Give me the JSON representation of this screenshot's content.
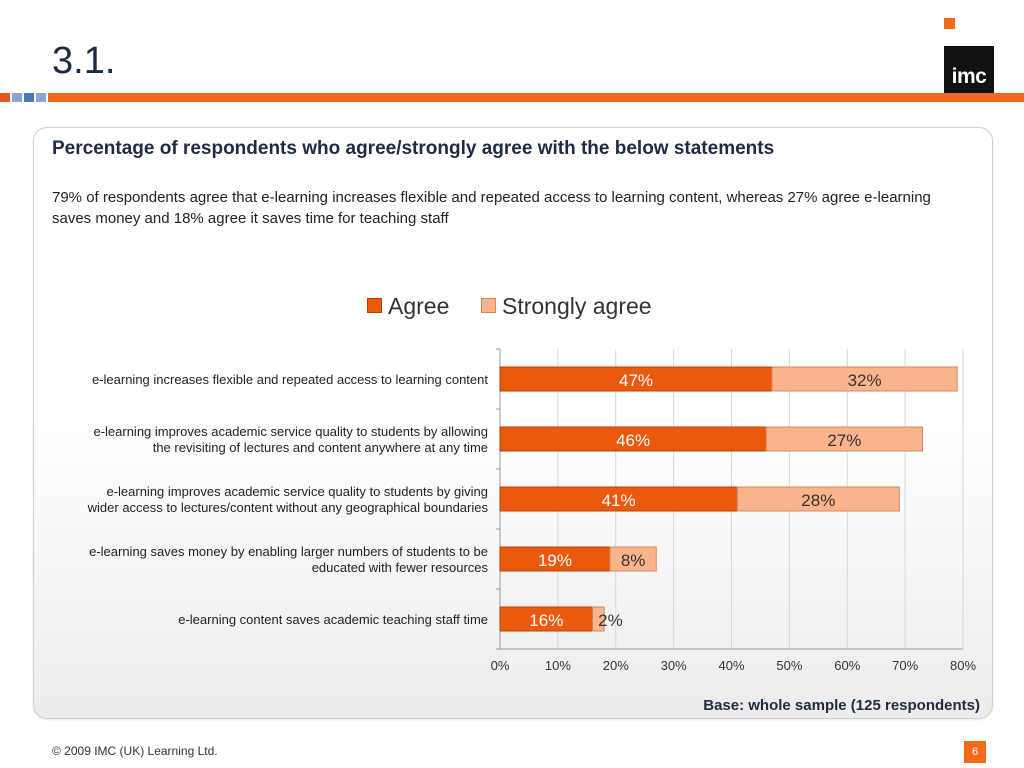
{
  "slide": {
    "title": "3.1.",
    "logo_text": "imc",
    "footer": "© 2009 IMC (UK) Learning Ltd.",
    "page_number": "6"
  },
  "colors": {
    "accent": "#f26a1b",
    "agree": "#ea5a0e",
    "strongly_agree": "#f9b48c",
    "stripe_blocks": [
      "#e8531f",
      "#8aa7d4",
      "#4d79b8",
      "#8aa7d4"
    ]
  },
  "panel": {
    "title": "Percentage of respondents who agree/strongly agree with the below statements",
    "subtitle": "79% of respondents agree that e-learning increases flexible and repeated access to learning content, whereas 27% agree e-learning saves money and 18% agree it saves time for teaching staff",
    "base_note": "Base: whole sample (125 respondents)"
  },
  "chart_data": {
    "type": "bar",
    "orientation": "horizontal",
    "stacked": true,
    "categories": [
      [
        "e-learning increases flexible and repeated access to learning content"
      ],
      [
        "e-learning improves academic service quality to students by allowing",
        "the revisiting of lectures and content anywhere at any time"
      ],
      [
        "e-learning improves academic service quality to students by giving",
        "wider access to lectures/content without any geographical boundaries"
      ],
      [
        "e-learning saves money by enabling larger numbers of students to be",
        "educated with fewer resources"
      ],
      [
        "e-learning content saves academic teaching staff time"
      ]
    ],
    "series": [
      {
        "name": "Agree",
        "values": [
          47,
          46,
          41,
          19,
          16
        ],
        "labels": [
          "47%",
          "46%",
          "41%",
          "19%",
          "16%"
        ]
      },
      {
        "name": "Strongly agree",
        "values": [
          32,
          27,
          28,
          8,
          2
        ],
        "labels": [
          "32%",
          "27%",
          "28%",
          "8%",
          "2%"
        ]
      }
    ],
    "xlim": [
      0,
      80
    ],
    "xticks": [
      0,
      10,
      20,
      30,
      40,
      50,
      60,
      70,
      80
    ],
    "xtick_labels": [
      "0%",
      "10%",
      "20%",
      "30%",
      "40%",
      "50%",
      "60%",
      "70%",
      "80%"
    ],
    "grid": true,
    "legend": "top-center"
  }
}
